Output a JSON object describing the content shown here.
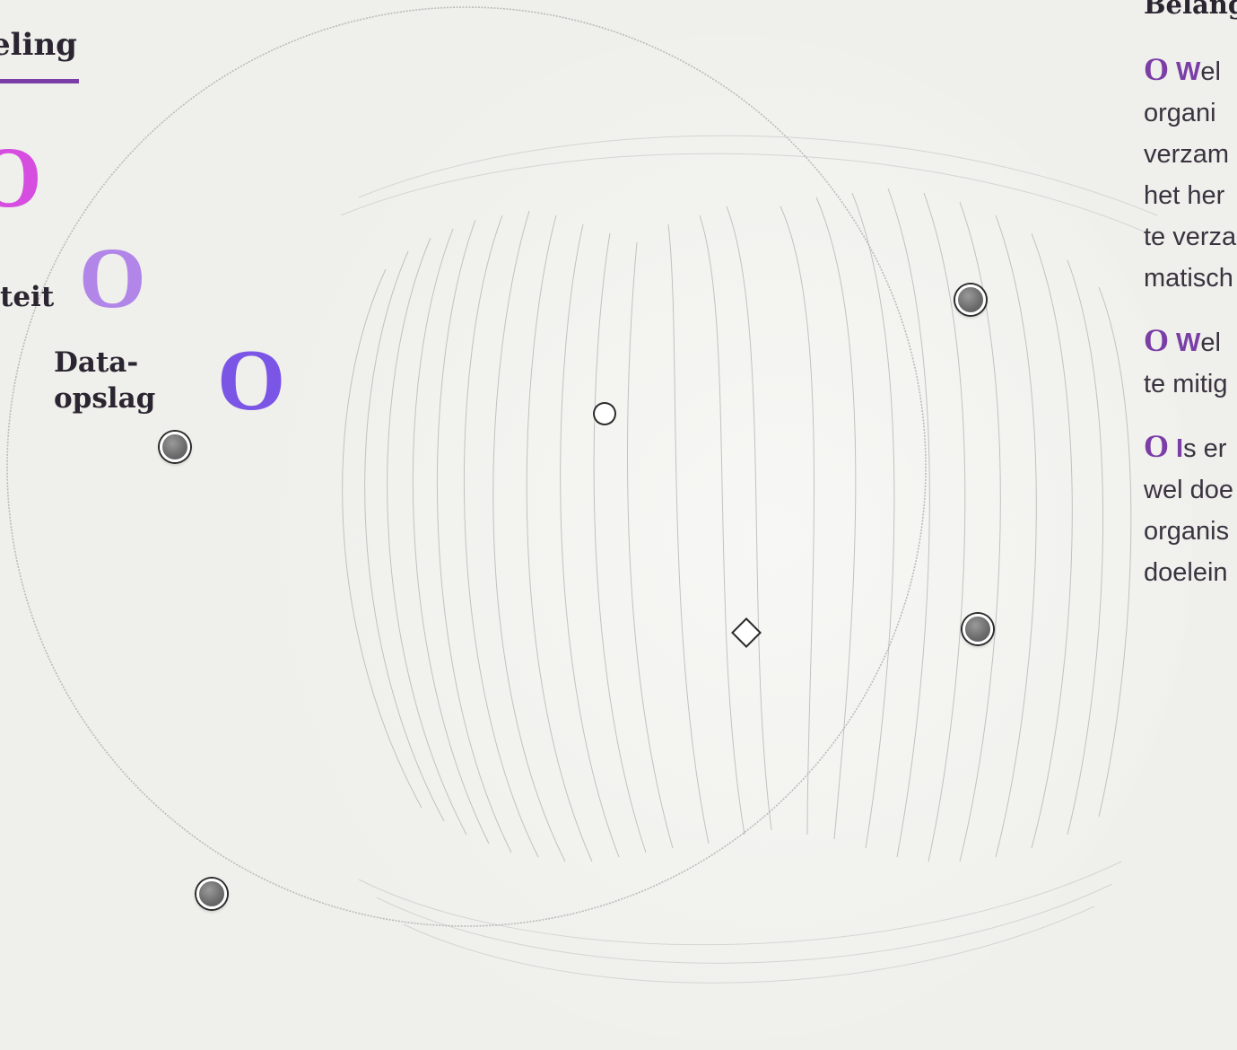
{
  "tab": {
    "label": "eling"
  },
  "topics": {
    "magenta_marker": "O",
    "lilac_marker": "O",
    "violet_marker": "O",
    "left_label": "teit",
    "data_label_line1": "Data-",
    "data_label_line2": "opslag"
  },
  "panel": {
    "title": "Belang",
    "questions": [
      {
        "marker": "O",
        "lead": "W",
        "lines": [
          "el",
          "organi",
          "verzam",
          "het her",
          "te verza",
          "matisch"
        ]
      },
      {
        "marker": "O",
        "lead": "W",
        "lines": [
          "el",
          "te mitig"
        ]
      },
      {
        "marker": "O",
        "lead": "I",
        "lines": [
          "s er",
          "wel doe",
          "organis",
          "doelein"
        ]
      }
    ]
  },
  "colors": {
    "accent_purple": "#7a3ea6",
    "magenta": "#d64ee0",
    "lilac": "#b186e8",
    "violet": "#7b55e6",
    "background": "#efefeb"
  },
  "icons": {
    "hotspot": "grey-circle-hotspot-icon",
    "hotspot_small": "white-dot-hotspot-icon",
    "hotspot_diamond": "diamond-hotspot-icon"
  }
}
